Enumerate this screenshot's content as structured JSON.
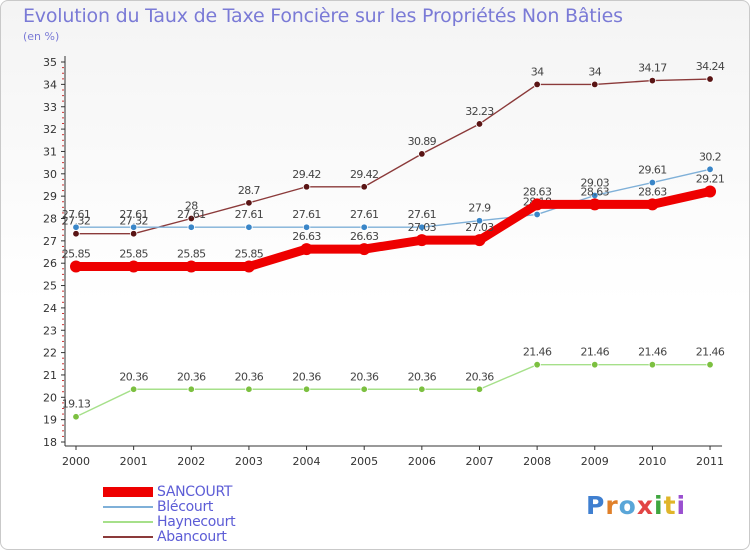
{
  "page": {
    "title": "Evolution du Taux de Taxe Foncière sur les Propriétés Non Bâties",
    "unit": "(en %)"
  },
  "logo": {
    "text": "Proxiti",
    "letter_colors": [
      "#3f7fd0",
      "#e0802a",
      "#5aa6d8",
      "#e24545",
      "#3fa63f",
      "#e0b52a",
      "#9a4fd0"
    ]
  },
  "chart_data": {
    "type": "line",
    "title": "Evolution du Taux de Taxe Foncière sur les Propriétés Non Bâties",
    "ylabel": "(en %)",
    "xlabel": "",
    "x": [
      "2000",
      "2001",
      "2002",
      "2003",
      "2004",
      "2005",
      "2006",
      "2007",
      "2008",
      "2009",
      "2010",
      "2011"
    ],
    "ylim": [
      18,
      35
    ],
    "yticks": [
      "18",
      "19",
      "20",
      "21",
      "22",
      "23",
      "24",
      "25",
      "26",
      "27",
      "28",
      "29",
      "30",
      "31",
      "32",
      "33",
      "34",
      "35"
    ],
    "grid": false,
    "legend_position": "bottom-left",
    "series": [
      {
        "name": "Abancourt",
        "color": "#8b3a3a",
        "marker": "#5a1515",
        "values": [
          27.32,
          27.32,
          28,
          28.7,
          29.42,
          29.42,
          30.89,
          32.23,
          34,
          34,
          34.17,
          34.24
        ],
        "labels": [
          "27.32",
          "27.32",
          "28",
          "28.7",
          "29.42",
          "29.42",
          "30.89",
          "32.23",
          "34",
          "34",
          "34.17",
          "34.24"
        ]
      },
      {
        "name": "Haynecourt",
        "color": "#a6e08a",
        "marker": "#7cc040",
        "values": [
          19.13,
          20.36,
          20.36,
          20.36,
          20.36,
          20.36,
          20.36,
          20.36,
          21.46,
          21.46,
          21.46,
          21.46
        ],
        "labels": [
          "19.13",
          "20.36",
          "20.36",
          "20.36",
          "20.36",
          "20.36",
          "20.36",
          "20.36",
          "21.46",
          "21.46",
          "21.46",
          "21.46"
        ]
      },
      {
        "name": "Blécourt",
        "color": "#7fb0d8",
        "marker": "#3a86c8",
        "values": [
          27.61,
          27.61,
          27.61,
          27.61,
          27.61,
          27.61,
          27.61,
          27.9,
          28.18,
          29.03,
          29.61,
          30.2
        ],
        "labels": [
          "27.61",
          "27.61",
          "27.61",
          "27.61",
          "27.61",
          "27.61",
          "27.61",
          "27.9",
          "28.18",
          "29.03",
          "29.61",
          "30.2"
        ]
      },
      {
        "name": "SANCOURT",
        "color": "#ee0000",
        "marker": "#ee0000",
        "values": [
          25.85,
          25.85,
          25.85,
          25.85,
          26.63,
          26.63,
          27.03,
          27.03,
          28.63,
          28.63,
          28.63,
          29.21
        ],
        "labels": [
          "25.85",
          "25.85",
          "25.85",
          "25.85",
          "26.63",
          "26.63",
          "27.03",
          "27.03",
          "28.63",
          "28.63",
          "28.63",
          "29.21"
        ]
      }
    ],
    "legend": [
      {
        "name": "SANCOURT",
        "color": "#ee0000"
      },
      {
        "name": "Blécourt",
        "color": "#7fb0d8"
      },
      {
        "name": "Haynecourt",
        "color": "#a6e08a"
      },
      {
        "name": "Abancourt",
        "color": "#8b3a3a"
      }
    ]
  }
}
